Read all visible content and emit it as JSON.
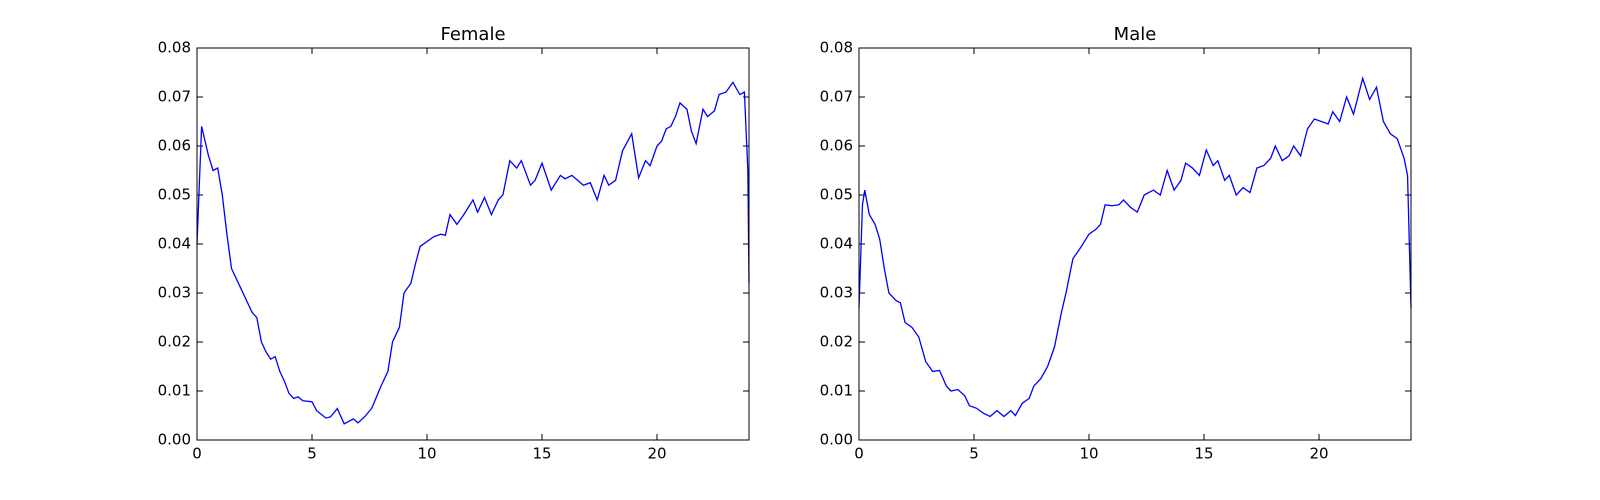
{
  "chart_data": [
    {
      "type": "line",
      "title": "Female",
      "color": "#0000ff",
      "x": [
        0,
        0.2,
        0.5,
        0.7,
        0.9,
        1.1,
        1.3,
        1.5,
        1.8,
        2.1,
        2.4,
        2.6,
        2.8,
        3.0,
        3.2,
        3.4,
        3.6,
        3.8,
        4.0,
        4.2,
        4.4,
        4.6,
        5.0,
        5.2,
        5.6,
        5.8,
        6.1,
        6.4,
        6.8,
        7.0,
        7.3,
        7.6,
        8.0,
        8.3,
        8.5,
        8.8,
        9.0,
        9.3,
        9.5,
        9.7,
        10.0,
        10.3,
        10.6,
        10.8,
        11.0,
        11.3,
        11.6,
        12.0,
        12.2,
        12.5,
        12.8,
        13.1,
        13.3,
        13.6,
        13.9,
        14.1,
        14.5,
        14.7,
        15.0,
        15.4,
        15.8,
        16.0,
        16.3,
        16.8,
        17.1,
        17.4,
        17.7,
        17.9,
        18.2,
        18.5,
        18.9,
        19.2,
        19.5,
        19.7,
        20.0,
        20.2,
        20.4,
        20.6,
        20.8,
        21.0,
        21.3,
        21.5,
        21.7,
        22.0,
        22.2,
        22.5,
        22.7,
        23.0,
        23.3,
        23.6,
        23.8,
        23.95,
        24.0
      ],
      "values": [
        0.04,
        0.064,
        0.058,
        0.055,
        0.0555,
        0.05,
        0.042,
        0.035,
        0.032,
        0.029,
        0.026,
        0.025,
        0.02,
        0.018,
        0.0165,
        0.017,
        0.014,
        0.012,
        0.0095,
        0.0085,
        0.0088,
        0.008,
        0.0078,
        0.006,
        0.0045,
        0.0047,
        0.0064,
        0.0033,
        0.0043,
        0.0035,
        0.0048,
        0.0065,
        0.011,
        0.014,
        0.02,
        0.023,
        0.03,
        0.032,
        0.036,
        0.0395,
        0.0405,
        0.0415,
        0.042,
        0.0418,
        0.046,
        0.044,
        0.046,
        0.049,
        0.0465,
        0.0495,
        0.046,
        0.049,
        0.05,
        0.057,
        0.0555,
        0.057,
        0.052,
        0.053,
        0.0565,
        0.051,
        0.054,
        0.0533,
        0.054,
        0.052,
        0.0525,
        0.049,
        0.054,
        0.052,
        0.053,
        0.059,
        0.0625,
        0.0535,
        0.057,
        0.056,
        0.06,
        0.061,
        0.0635,
        0.064,
        0.066,
        0.0688,
        0.0675,
        0.063,
        0.0605,
        0.0675,
        0.066,
        0.0672,
        0.0705,
        0.071,
        0.073,
        0.0705,
        0.071,
        0.055,
        0.032
      ],
      "xlim": [
        0,
        24
      ],
      "xticks": [
        0,
        5,
        10,
        15,
        20
      ],
      "ylim": [
        0,
        0.08
      ],
      "yticks": [
        {
          "value": 0,
          "label": "0.00"
        },
        {
          "value": 0.01,
          "label": "0.01"
        },
        {
          "value": 0.02,
          "label": "0.02"
        },
        {
          "value": 0.03,
          "label": "0.03"
        },
        {
          "value": 0.04,
          "label": "0.04"
        },
        {
          "value": 0.05,
          "label": "0.05"
        },
        {
          "value": 0.06,
          "label": "0.06"
        },
        {
          "value": 0.07,
          "label": "0.07"
        },
        {
          "value": 0.08,
          "label": "0.08"
        }
      ]
    },
    {
      "type": "line",
      "title": "Male",
      "color": "#0000ff",
      "x": [
        0,
        0.15,
        0.25,
        0.45,
        0.7,
        0.9,
        1.1,
        1.3,
        1.6,
        1.8,
        2.0,
        2.3,
        2.6,
        2.9,
        3.2,
        3.5,
        3.8,
        4.0,
        4.3,
        4.6,
        4.8,
        5.1,
        5.4,
        5.7,
        6.0,
        6.3,
        6.6,
        6.8,
        7.1,
        7.4,
        7.6,
        7.9,
        8.2,
        8.5,
        8.8,
        9.0,
        9.3,
        9.6,
        10.0,
        10.3,
        10.5,
        10.7,
        11.0,
        11.3,
        11.5,
        11.8,
        12.1,
        12.4,
        12.8,
        13.1,
        13.4,
        13.7,
        14.0,
        14.2,
        14.5,
        14.8,
        15.1,
        15.4,
        15.6,
        15.9,
        16.1,
        16.4,
        16.7,
        17.0,
        17.3,
        17.6,
        17.9,
        18.1,
        18.4,
        18.7,
        18.9,
        19.2,
        19.5,
        19.8,
        20.1,
        20.4,
        20.6,
        20.9,
        21.2,
        21.5,
        21.9,
        22.2,
        22.5,
        22.8,
        23.1,
        23.4,
        23.7,
        23.85,
        24.0
      ],
      "values": [
        0.027,
        0.048,
        0.051,
        0.046,
        0.044,
        0.041,
        0.035,
        0.03,
        0.0285,
        0.028,
        0.024,
        0.023,
        0.021,
        0.016,
        0.014,
        0.0142,
        0.011,
        0.01,
        0.0103,
        0.009,
        0.007,
        0.0065,
        0.0055,
        0.0048,
        0.006,
        0.0048,
        0.006,
        0.005,
        0.0075,
        0.0085,
        0.011,
        0.0125,
        0.015,
        0.019,
        0.026,
        0.03,
        0.037,
        0.039,
        0.042,
        0.043,
        0.044,
        0.048,
        0.0478,
        0.048,
        0.049,
        0.0475,
        0.0465,
        0.05,
        0.051,
        0.05,
        0.055,
        0.051,
        0.053,
        0.0565,
        0.0555,
        0.054,
        0.0592,
        0.056,
        0.057,
        0.053,
        0.054,
        0.05,
        0.0515,
        0.0505,
        0.0555,
        0.056,
        0.0575,
        0.06,
        0.057,
        0.058,
        0.06,
        0.058,
        0.0635,
        0.0655,
        0.065,
        0.0645,
        0.067,
        0.065,
        0.07,
        0.0665,
        0.0738,
        0.0695,
        0.072,
        0.065,
        0.0625,
        0.0615,
        0.0575,
        0.054,
        0.027
      ],
      "xlim": [
        0,
        24
      ],
      "xticks": [
        0,
        5,
        10,
        15,
        20
      ],
      "ylim": [
        0,
        0.08
      ],
      "yticks": [
        {
          "value": 0,
          "label": "0.00"
        },
        {
          "value": 0.01,
          "label": "0.01"
        },
        {
          "value": 0.02,
          "label": "0.02"
        },
        {
          "value": 0.03,
          "label": "0.03"
        },
        {
          "value": 0.04,
          "label": "0.04"
        },
        {
          "value": 0.05,
          "label": "0.05"
        },
        {
          "value": 0.06,
          "label": "0.06"
        },
        {
          "value": 0.07,
          "label": "0.07"
        },
        {
          "value": 0.08,
          "label": "0.08"
        }
      ]
    }
  ]
}
